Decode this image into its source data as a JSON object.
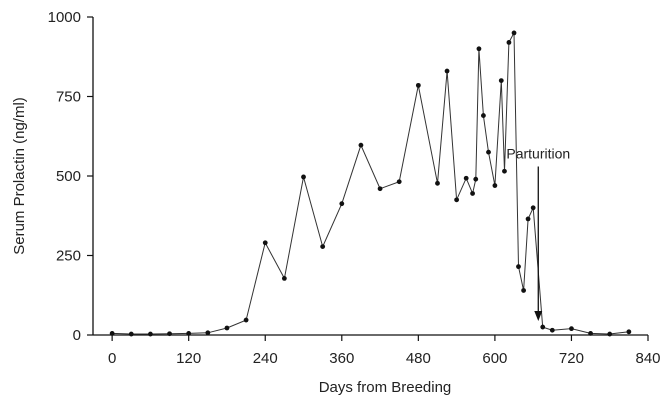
{
  "chart_data": {
    "type": "line",
    "title": "",
    "xlabel": "Days from Breeding",
    "ylabel": "Serum Prolactin (ng/ml)",
    "xlim": [
      -30,
      840
    ],
    "ylim": [
      0,
      1000
    ],
    "xticks": [
      0,
      120,
      240,
      360,
      480,
      600,
      720,
      840
    ],
    "yticks": [
      0,
      250,
      500,
      750,
      1000
    ],
    "grid": false,
    "series": [
      {
        "name": "",
        "color": "#111111",
        "x": [
          0,
          30,
          60,
          90,
          120,
          150,
          180,
          210,
          240,
          270,
          300,
          330,
          360,
          390,
          420,
          450,
          480,
          510,
          525,
          540,
          555,
          565,
          570,
          575,
          582,
          590,
          600,
          610,
          615,
          622,
          630,
          637,
          645,
          652,
          660,
          675,
          690,
          720,
          750,
          780,
          810
        ],
        "y": [
          5,
          3,
          3,
          4,
          5,
          7,
          22,
          47,
          290,
          178,
          497,
          278,
          413,
          597,
          460,
          482,
          785,
          477,
          830,
          425,
          493,
          445,
          490,
          900,
          690,
          575,
          470,
          800,
          515,
          920,
          950,
          215,
          140,
          365,
          400,
          25,
          15,
          20,
          5,
          3,
          10
        ]
      }
    ],
    "annotations": [
      {
        "text": "Parturition",
        "x": 668,
        "y": 555
      }
    ]
  }
}
